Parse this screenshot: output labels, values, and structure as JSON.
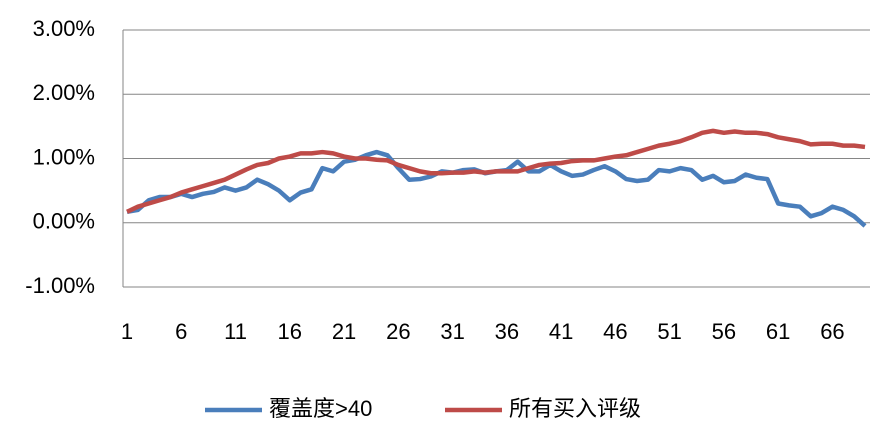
{
  "chart_data": {
    "type": "line",
    "x": [
      1,
      2,
      3,
      4,
      5,
      6,
      7,
      8,
      9,
      10,
      11,
      12,
      13,
      14,
      15,
      16,
      17,
      18,
      19,
      20,
      21,
      22,
      23,
      24,
      25,
      26,
      27,
      28,
      29,
      30,
      31,
      32,
      33,
      34,
      35,
      36,
      37,
      38,
      39,
      40,
      41,
      42,
      43,
      44,
      45,
      46,
      47,
      48,
      49,
      50,
      51,
      52,
      53,
      54,
      55,
      56,
      57,
      58,
      59,
      60,
      61,
      62,
      63,
      64,
      65,
      66,
      67,
      68,
      69
    ],
    "series": [
      {
        "name": "覆盖度>40",
        "color": "#4a7ebb",
        "values": [
          0.17,
          0.2,
          0.35,
          0.4,
          0.4,
          0.45,
          0.4,
          0.45,
          0.48,
          0.55,
          0.5,
          0.55,
          0.67,
          0.6,
          0.5,
          0.35,
          0.47,
          0.52,
          0.85,
          0.8,
          0.95,
          0.98,
          1.05,
          1.1,
          1.05,
          0.85,
          0.67,
          0.68,
          0.72,
          0.8,
          0.78,
          0.82,
          0.83,
          0.77,
          0.8,
          0.82,
          0.95,
          0.8,
          0.8,
          0.9,
          0.8,
          0.73,
          0.75,
          0.82,
          0.88,
          0.8,
          0.68,
          0.65,
          0.67,
          0.82,
          0.8,
          0.85,
          0.82,
          0.67,
          0.73,
          0.63,
          0.65,
          0.75,
          0.7,
          0.68,
          0.3,
          0.27,
          0.25,
          0.1,
          0.15,
          0.25,
          0.2,
          0.1,
          -0.05
        ]
      },
      {
        "name": "所有买入评级",
        "color": "#be4b48",
        "values": [
          0.17,
          0.25,
          0.3,
          0.35,
          0.4,
          0.47,
          0.52,
          0.57,
          0.62,
          0.67,
          0.75,
          0.83,
          0.9,
          0.93,
          1.0,
          1.03,
          1.08,
          1.08,
          1.1,
          1.08,
          1.03,
          1.0,
          1.0,
          0.98,
          0.97,
          0.9,
          0.85,
          0.8,
          0.77,
          0.77,
          0.78,
          0.78,
          0.8,
          0.78,
          0.8,
          0.8,
          0.8,
          0.85,
          0.9,
          0.92,
          0.93,
          0.96,
          0.97,
          0.97,
          1.0,
          1.03,
          1.05,
          1.1,
          1.15,
          1.2,
          1.23,
          1.27,
          1.33,
          1.4,
          1.43,
          1.4,
          1.42,
          1.4,
          1.4,
          1.38,
          1.33,
          1.3,
          1.27,
          1.22,
          1.23,
          1.23,
          1.2,
          1.2,
          1.18
        ]
      }
    ],
    "xlim": [
      1,
      69
    ],
    "xticks": [
      1,
      6,
      11,
      16,
      21,
      26,
      31,
      36,
      41,
      46,
      51,
      56,
      61,
      66
    ],
    "ylim": [
      -1,
      3
    ],
    "yticks": [
      {
        "value": -1,
        "label": "-1.00%"
      },
      {
        "value": 0,
        "label": "0.00%"
      },
      {
        "value": 1,
        "label": "1.00%"
      },
      {
        "value": 2,
        "label": "2.00%"
      },
      {
        "value": 3,
        "label": "3.00%"
      }
    ],
    "grid": true,
    "legend": "bottom"
  }
}
